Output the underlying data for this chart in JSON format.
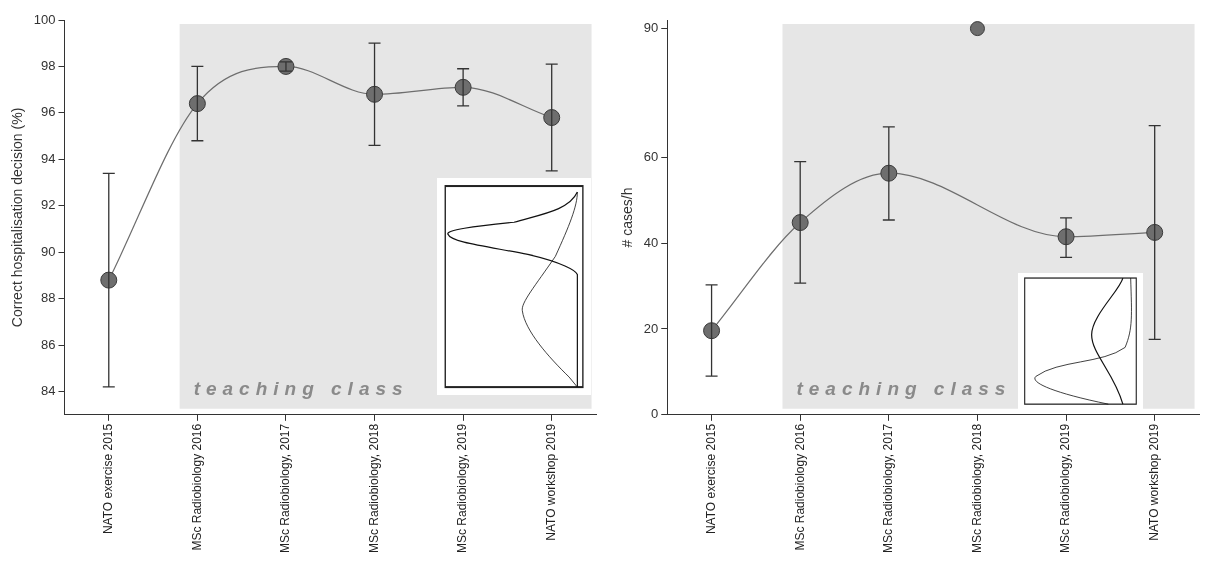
{
  "chart_data": [
    {
      "type": "line",
      "ylabel": "Correct hospitalisation decision (%)",
      "categories": [
        "NATO exercise 2015",
        "MSc Radiobiology 2016",
        "MSc Radiobiology, 2017",
        "MSc Radiobiology, 2018",
        "MSc Radiobiology, 2019",
        "NATO workshop 2019"
      ],
      "series": [
        {
          "color": "#6e6e6e",
          "values": [
            88.8,
            96.4,
            98.0,
            96.8,
            97.1,
            95.8
          ],
          "errors": [
            [
              84.2,
              93.4
            ],
            [
              94.8,
              98.0
            ],
            [
              97.8,
              98.2
            ],
            [
              94.6,
              99.0
            ],
            [
              96.3,
              97.9
            ],
            [
              93.5,
              98.1
            ]
          ]
        }
      ],
      "ylim": [
        83,
        100
      ],
      "yticks": [
        84,
        86,
        88,
        90,
        92,
        94,
        96,
        98,
        100
      ],
      "grid": false,
      "legend": false,
      "marker": "circle",
      "line_style": "solid",
      "bands": [
        {
          "axis": "x",
          "from": "MSc Radiobiology 2016",
          "to": "NATO workshop 2019",
          "label": "teaching class",
          "color": "#e6e6e6"
        }
      ]
    },
    {
      "type": "line",
      "ylabel": "# cases/h",
      "categories": [
        "NATO exercise 2015",
        "MSc Radiobiology 2016",
        "MSc Radiobiology, 2017",
        "MSc Radiobiology, 2018",
        "MSc Radiobiology, 2019",
        "NATO workshop 2019"
      ],
      "series": [
        {
          "color": "#6e6e6e",
          "values": [
            19.6,
            44.8,
            56.3,
            null,
            41.5,
            42.5
          ],
          "errors": [
            [
              9.0,
              30.3
            ],
            [
              30.7,
              59.0
            ],
            [
              45.4,
              67.1
            ],
            null,
            [
              36.7,
              45.9
            ],
            [
              17.6,
              67.4
            ]
          ]
        },
        {
          "type": "scatter",
          "color": "#6e6e6e",
          "x": [
            "MSc Radiobiology, 2018"
          ],
          "values": [
            90
          ]
        }
      ],
      "ylim": [
        0,
        92
      ],
      "yticks": [
        0,
        20,
        40,
        60,
        90
      ],
      "grid": false,
      "legend": false,
      "marker": "circle",
      "line_style": "solid",
      "bands": [
        {
          "axis": "x",
          "from": "MSc Radiobiology 2016",
          "to": "NATO workshop 2019",
          "label": "teaching class",
          "color": "#e6e6e6"
        }
      ]
    }
  ]
}
